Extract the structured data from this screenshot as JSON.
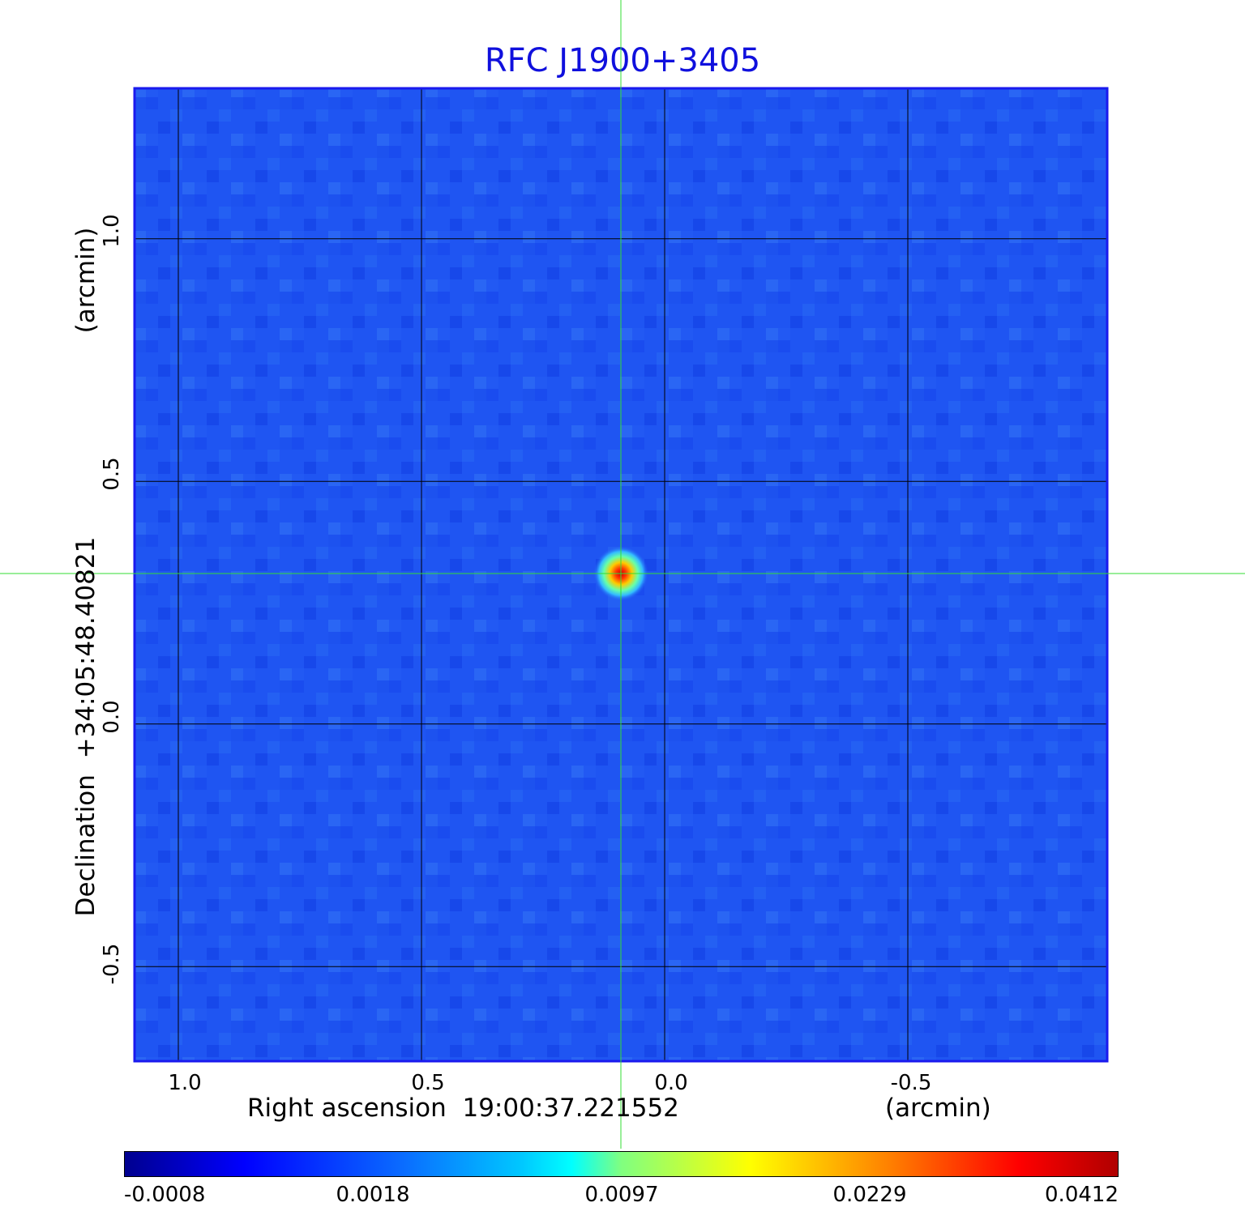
{
  "chart_data": {
    "type": "heatmap",
    "title": "RFC J1900+3405",
    "xlabel": "Right ascension  19:00:37.221552",
    "xunit": "(arcmin)",
    "ylabel": "Declination  +34:05:48.40821",
    "yunit": "(arcmin)",
    "x_ticks": [
      "1.0",
      "0.5",
      "0.0",
      "-0.5"
    ],
    "y_ticks": [
      "1.0",
      "0.5",
      "0.0",
      "-0.5"
    ],
    "xlim": [
      1.09,
      -0.91
    ],
    "ylim": [
      -0.695,
      1.31
    ],
    "grid": true,
    "source": {
      "x": 0.09,
      "y": 0.31,
      "peak": 0.0412
    },
    "colorbar": {
      "colormap": "jet",
      "ticks": [
        "-0.0008",
        "0.0018",
        "0.0097",
        "0.0229",
        "0.0412"
      ]
    },
    "colors": {
      "title": "#1010dd",
      "frame": "#1a1aee",
      "background_field": "#1f55f2",
      "crosshair": "#33dd33",
      "grid": "#000000"
    }
  }
}
